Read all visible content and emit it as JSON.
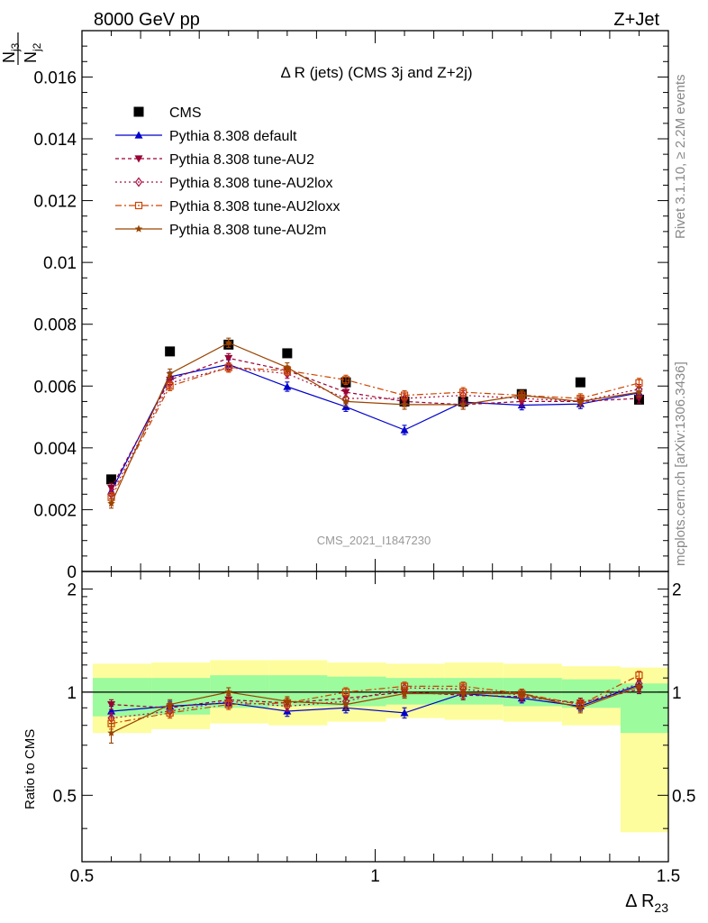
{
  "header": {
    "left": "8000 GeV pp",
    "right": "Z+Jet"
  },
  "side_labels": {
    "rivet": "Rivet 3.1.10, ≥ 2.2M events",
    "mcplots": "mcplots.cern.ch [arXiv:1306.3436]"
  },
  "watermark": "CMS_2021_I1847230",
  "colors": {
    "band_inner": "#9cfb9c",
    "band_outer": "#fdfd9d",
    "CMS": "#000000",
    "Pythia 8.308 default": "#0000cc",
    "Pythia 8.308 tune-AU2": "#990033",
    "Pythia 8.308 tune-AU2lox": "#aa1144",
    "Pythia 8.308 tune-AU2loxx": "#cc4400",
    "Pythia 8.308 tune-AU2m": "#994400"
  },
  "chart_data": [
    {
      "type": "line",
      "title": "Δ R (jets) (CMS 3j and Z+2j)",
      "ylabel": "N_j3 / N_j2",
      "xlim": [
        0.5,
        1.5
      ],
      "ylim": [
        0,
        0.0175
      ],
      "yticks": [
        {
          "v": 0,
          "label": "0"
        },
        {
          "v": 0.002,
          "label": "0.002"
        },
        {
          "v": 0.004,
          "label": "0.004"
        },
        {
          "v": 0.006,
          "label": "0.006"
        },
        {
          "v": 0.008,
          "label": "0.008"
        },
        {
          "v": 0.01,
          "label": "0.01"
        },
        {
          "v": 0.012,
          "label": "0.012"
        },
        {
          "v": 0.014,
          "label": "0.014"
        },
        {
          "v": 0.016,
          "label": "0.016"
        }
      ],
      "legend_position": "top-left",
      "x": [
        0.55,
        0.65,
        0.75,
        0.85,
        0.95,
        1.05,
        1.15,
        1.25,
        1.35,
        1.45
      ],
      "series": [
        {
          "name": "CMS",
          "marker": "square",
          "dash": "none",
          "values": [
            0.00298,
            0.00712,
            0.00734,
            0.00706,
            0.00612,
            0.0055,
            0.0055,
            0.00574,
            0.00612,
            0.00556
          ],
          "err": [
            5e-05,
            5e-05,
            5e-05,
            5e-05,
            5e-05,
            5e-05,
            5e-05,
            5e-05,
            5e-05,
            5e-05
          ]
        },
        {
          "name": "Pythia 8.308 default",
          "marker": "triangle-up",
          "dash": "none",
          "values": [
            0.0026,
            0.0063,
            0.0067,
            0.00598,
            0.00533,
            0.00458,
            0.00548,
            0.00538,
            0.00542,
            0.00578
          ],
          "err": [
            0.00015,
            0.00015,
            0.00015,
            0.00015,
            0.00015,
            0.00015,
            0.00015,
            0.00015,
            0.00015,
            0.00015
          ]
        },
        {
          "name": "Pythia 8.308 tune-AU2",
          "marker": "triangle-down",
          "dash": "4,3",
          "values": [
            0.0027,
            0.0062,
            0.0069,
            0.0065,
            0.0058,
            0.0055,
            0.0054,
            0.0055,
            0.0055,
            0.0056
          ],
          "err": [
            0.00015,
            0.00015,
            0.00015,
            0.00015,
            0.00015,
            0.00015,
            0.00015,
            0.00015,
            0.00015,
            0.00015
          ]
        },
        {
          "name": "Pythia 8.308 tune-AU2lox",
          "marker": "diamond-open",
          "dash": "2,3",
          "values": [
            0.0025,
            0.0061,
            0.0066,
            0.0064,
            0.0056,
            0.0056,
            0.0057,
            0.0056,
            0.0055,
            0.0059
          ],
          "err": [
            0.00015,
            0.00015,
            0.00015,
            0.00015,
            0.00015,
            0.00015,
            0.00015,
            0.00015,
            0.00015,
            0.00015
          ]
        },
        {
          "name": "Pythia 8.308 tune-AU2loxx",
          "marker": "square-open",
          "dash": "7,3,2,3",
          "values": [
            0.0024,
            0.006,
            0.0066,
            0.0065,
            0.0062,
            0.0057,
            0.0058,
            0.0057,
            0.0056,
            0.0061
          ],
          "err": [
            0.00015,
            0.00015,
            0.00015,
            0.00015,
            0.00015,
            0.00015,
            0.00015,
            0.00015,
            0.00015,
            0.00015
          ]
        },
        {
          "name": "Pythia 8.308 tune-AU2m",
          "marker": "star",
          "dash": "none",
          "values": [
            0.0022,
            0.0064,
            0.0074,
            0.0066,
            0.0055,
            0.0054,
            0.0054,
            0.0057,
            0.0055,
            0.0058
          ],
          "err": [
            0.00015,
            0.00015,
            0.00015,
            0.00015,
            0.00015,
            0.00015,
            0.00015,
            0.00015,
            0.00015,
            0.00015
          ]
        }
      ]
    },
    {
      "type": "line",
      "ylabel": "Ratio to CMS",
      "xlabel": "Δ R",
      "xlabel_sub": "23",
      "xlim": [
        0.5,
        1.5
      ],
      "ylim": [
        0.32,
        2.25
      ],
      "yticks": [
        {
          "v": 0.5,
          "label": "0.5"
        },
        {
          "v": 1,
          "label": "1"
        },
        {
          "v": 2,
          "label": "2"
        }
      ],
      "xticks": [
        {
          "v": 0.5,
          "label": "0.5"
        },
        {
          "v": 1,
          "label": "1"
        },
        {
          "v": 1.5,
          "label": "1.5"
        }
      ],
      "bands": {
        "edges": [
          0.5,
          0.6,
          0.7,
          0.8,
          0.9,
          1.0,
          1.1,
          1.2,
          1.3,
          1.4,
          1.5
        ],
        "inner": [
          [
            0.85,
            1.1
          ],
          [
            0.86,
            1.1
          ],
          [
            0.9,
            1.12
          ],
          [
            0.91,
            1.12
          ],
          [
            0.91,
            1.11
          ],
          [
            0.92,
            1.1
          ],
          [
            0.92,
            1.1
          ],
          [
            0.91,
            1.1
          ],
          [
            0.9,
            1.09
          ],
          [
            0.76,
            1.06
          ]
        ],
        "outer": [
          [
            0.76,
            1.21
          ],
          [
            0.78,
            1.22
          ],
          [
            0.81,
            1.24
          ],
          [
            0.8,
            1.24
          ],
          [
            0.82,
            1.22
          ],
          [
            0.84,
            1.21
          ],
          [
            0.83,
            1.22
          ],
          [
            0.82,
            1.21
          ],
          [
            0.8,
            1.19
          ],
          [
            0.39,
            1.18
          ]
        ]
      },
      "x": [
        0.55,
        0.65,
        0.75,
        0.85,
        0.95,
        1.05,
        1.15,
        1.25,
        1.35,
        1.45
      ],
      "series": [
        {
          "name": "Pythia 8.308 default",
          "marker": "triangle-up",
          "dash": "none",
          "values": [
            0.88,
            0.91,
            0.93,
            0.88,
            0.9,
            0.87,
            0.99,
            0.96,
            0.91,
            1.05
          ],
          "err": [
            0.03,
            0.03,
            0.03,
            0.03,
            0.03,
            0.03,
            0.03,
            0.03,
            0.03,
            0.03
          ]
        },
        {
          "name": "Pythia 8.308 tune-AU2",
          "marker": "triangle-down",
          "dash": "4,3",
          "values": [
            0.92,
            0.9,
            0.95,
            0.93,
            0.96,
            1.0,
            0.98,
            0.97,
            0.93,
            1.02
          ],
          "err": [
            0.03,
            0.03,
            0.03,
            0.03,
            0.03,
            0.03,
            0.03,
            0.03,
            0.03,
            0.03
          ]
        },
        {
          "name": "Pythia 8.308 tune-AU2lox",
          "marker": "diamond-open",
          "dash": "2,3",
          "values": [
            0.84,
            0.88,
            0.94,
            0.91,
            0.94,
            1.03,
            1.02,
            0.98,
            0.92,
            1.06
          ],
          "err": [
            0.03,
            0.03,
            0.03,
            0.03,
            0.03,
            0.03,
            0.03,
            0.03,
            0.03,
            0.03
          ]
        },
        {
          "name": "Pythia 8.308 tune-AU2loxx",
          "marker": "square-open",
          "dash": "7,3,2,3",
          "values": [
            0.81,
            0.87,
            0.92,
            0.93,
            1.0,
            1.04,
            1.04,
            0.99,
            0.92,
            1.12
          ],
          "err": [
            0.03,
            0.03,
            0.03,
            0.03,
            0.03,
            0.03,
            0.03,
            0.03,
            0.03,
            0.03
          ]
        },
        {
          "name": "Pythia 8.308 tune-AU2m",
          "marker": "star",
          "dash": "none",
          "values": [
            0.76,
            0.92,
            1.0,
            0.94,
            0.92,
            0.99,
            0.99,
            0.99,
            0.9,
            1.04
          ],
          "err": [
            0.05,
            0.03,
            0.03,
            0.03,
            0.03,
            0.03,
            0.03,
            0.03,
            0.03,
            0.03
          ]
        }
      ]
    }
  ]
}
